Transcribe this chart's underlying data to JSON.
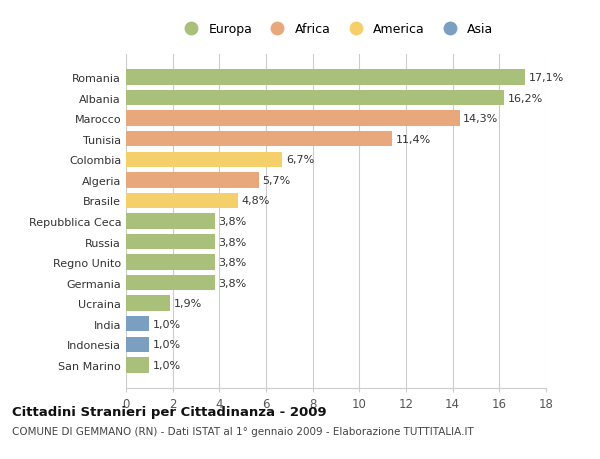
{
  "categories": [
    "Romania",
    "Albania",
    "Marocco",
    "Tunisia",
    "Colombia",
    "Algeria",
    "Brasile",
    "Repubblica Ceca",
    "Russia",
    "Regno Unito",
    "Germania",
    "Ucraina",
    "India",
    "Indonesia",
    "San Marino"
  ],
  "values": [
    17.1,
    16.2,
    14.3,
    11.4,
    6.7,
    5.7,
    4.8,
    3.8,
    3.8,
    3.8,
    3.8,
    1.9,
    1.0,
    1.0,
    1.0
  ],
  "labels": [
    "17,1%",
    "16,2%",
    "14,3%",
    "11,4%",
    "6,7%",
    "5,7%",
    "4,8%",
    "3,8%",
    "3,8%",
    "3,8%",
    "3,8%",
    "1,9%",
    "1,0%",
    "1,0%",
    "1,0%"
  ],
  "continents": [
    "Europa",
    "Europa",
    "Africa",
    "Africa",
    "America",
    "Africa",
    "America",
    "Europa",
    "Europa",
    "Europa",
    "Europa",
    "Europa",
    "Asia",
    "Asia",
    "Europa"
  ],
  "colors": {
    "Europa": "#a8c07a",
    "Africa": "#e8a87c",
    "America": "#f5d06a",
    "Asia": "#7a9fc0"
  },
  "legend_order": [
    "Europa",
    "Africa",
    "America",
    "Asia"
  ],
  "xlim": [
    0,
    18
  ],
  "xticks": [
    0,
    2,
    4,
    6,
    8,
    10,
    12,
    14,
    16,
    18
  ],
  "title": "Cittadini Stranieri per Cittadinanza - 2009",
  "subtitle": "COMUNE DI GEMMANO (RN) - Dati ISTAT al 1° gennaio 2009 - Elaborazione TUTTITALIA.IT",
  "bg_color": "#ffffff",
  "grid_color": "#cccccc",
  "bar_height": 0.75,
  "label_fontsize": 8.0,
  "ytick_fontsize": 8.0,
  "xtick_fontsize": 8.5,
  "legend_fontsize": 9.0,
  "title_fontsize": 9.5,
  "subtitle_fontsize": 7.5
}
